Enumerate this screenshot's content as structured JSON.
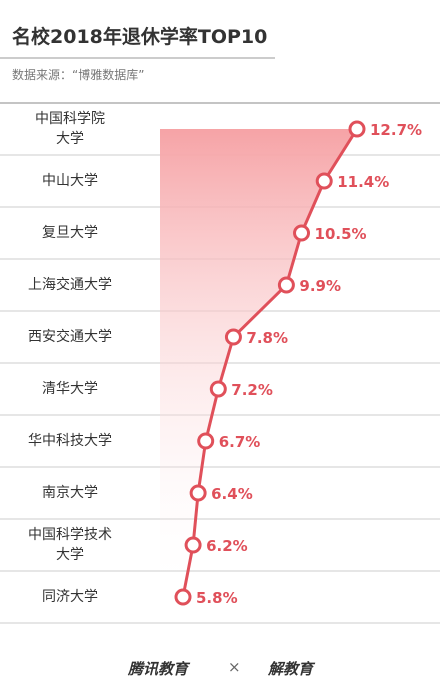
{
  "chart_data": {
    "type": "line",
    "title": "名校2018年退休学率TOP10",
    "subtitle": "数据来源：“博雅数据库”",
    "categories": [
      "中国科学院\n大学",
      "中山大学",
      "复旦大学",
      "上海交通大学",
      "西安交通大学",
      "清华大学",
      "华中科技大学",
      "南京大学",
      "中国科学技术\n大学",
      "同济大学"
    ],
    "values": [
      12.7,
      11.4,
      10.5,
      9.9,
      7.8,
      7.2,
      6.7,
      6.4,
      6.2,
      5.8
    ],
    "value_labels": [
      "12.7%",
      "11.4%",
      "10.5%",
      "9.9%",
      "7.8%",
      "7.2%",
      "6.7%",
      "6.4%",
      "6.2%",
      "5.8%"
    ],
    "color": "#e0505a"
  },
  "footer": {
    "left": "腾讯教育",
    "sep": "×",
    "right": "解教育"
  }
}
